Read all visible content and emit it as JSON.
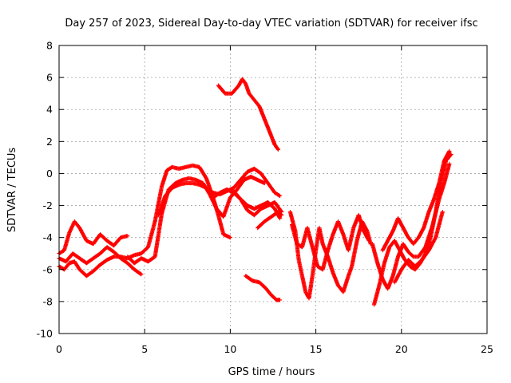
{
  "chart_data": {
    "type": "scatter",
    "title": "Day 257 of 2023, Sidereal Day-to-day VTEC variation (SDTVAR) for receiver ifsc",
    "xlabel": "GPS time / hours",
    "ylabel": "SDTVAR / TECUs",
    "xlim": [
      0,
      25
    ],
    "ylim": [
      -10,
      8
    ],
    "xticks": [
      0,
      5,
      10,
      15,
      20,
      25
    ],
    "yticks": [
      -10,
      -8,
      -6,
      -4,
      -2,
      0,
      2,
      4,
      6,
      8
    ],
    "grid": true,
    "marker": "+",
    "color": "#ff0000",
    "series": [
      {
        "x": [
          0.0,
          0.3,
          0.6,
          0.9,
          1.2,
          1.6,
          2.0,
          2.4,
          2.8,
          3.2,
          3.6,
          4.0
        ],
        "y": [
          -5.0,
          -4.8,
          -3.7,
          -3.0,
          -3.4,
          -4.2,
          -4.4,
          -3.8,
          -4.2,
          -4.5,
          -4.0,
          -3.9
        ]
      },
      {
        "x": [
          0.0,
          0.4,
          0.8,
          1.2,
          1.6,
          2.0,
          2.4,
          2.8,
          3.2,
          3.6,
          4.0,
          4.4,
          4.8
        ],
        "y": [
          -5.3,
          -5.5,
          -5.0,
          -5.3,
          -5.6,
          -5.3,
          -5.0,
          -4.6,
          -4.9,
          -5.3,
          -5.6,
          -6.0,
          -6.3
        ]
      },
      {
        "x": [
          0.0,
          0.3,
          0.6,
          0.9,
          1.2,
          1.6,
          2.0,
          2.4,
          2.8,
          3.2,
          3.6,
          4.0,
          4.4,
          4.8,
          5.2,
          5.6,
          6.0,
          6.3,
          6.6,
          7.0,
          7.4,
          7.8,
          8.2,
          8.6,
          9.0,
          9.3,
          9.6,
          10.0
        ],
        "y": [
          -5.8,
          -6.0,
          -5.6,
          -5.5,
          -6.0,
          -6.4,
          -6.1,
          -5.7,
          -5.4,
          -5.2,
          -5.2,
          -5.3,
          -5.1,
          -5.0,
          -4.6,
          -3.0,
          -0.8,
          0.2,
          0.4,
          0.3,
          0.4,
          0.5,
          0.4,
          -0.3,
          -1.5,
          -2.6,
          -3.8,
          -4.0
        ]
      },
      {
        "x": [
          4.0,
          4.4,
          4.8,
          5.2,
          5.6,
          6.0,
          6.4,
          6.8,
          7.2,
          7.6,
          8.0,
          8.4,
          8.8,
          9.2,
          9.6,
          10.0,
          10.4,
          10.8,
          11.2,
          11.6,
          12.0
        ],
        "y": [
          -5.2,
          -5.6,
          -5.3,
          -5.5,
          -5.2,
          -2.5,
          -1.0,
          -0.6,
          -0.4,
          -0.3,
          -0.4,
          -0.6,
          -1.3,
          -2.2,
          -2.7,
          -1.5,
          -1.0,
          -0.4,
          -0.2,
          -0.4,
          -0.6
        ]
      },
      {
        "x": [
          5.8,
          6.2,
          6.6,
          7.0,
          7.4,
          7.8,
          8.2,
          8.6,
          9.0,
          9.4,
          9.8,
          10.2,
          10.6,
          11.0,
          11.4,
          11.8,
          12.2,
          12.6,
          12.9
        ],
        "y": [
          -2.6,
          -1.4,
          -0.9,
          -0.7,
          -0.6,
          -0.6,
          -0.7,
          -0.9,
          -1.2,
          -1.3,
          -1.1,
          -0.9,
          -0.4,
          0.1,
          0.3,
          0.0,
          -0.6,
          -1.2,
          -1.4
        ]
      },
      {
        "x": [
          9.0,
          9.4,
          9.8,
          10.2,
          10.6,
          11.0,
          11.4,
          11.8,
          12.2,
          12.6,
          12.9
        ],
        "y": [
          -1.5,
          -1.2,
          -1.0,
          -1.2,
          -1.6,
          -2.0,
          -2.2,
          -2.0,
          -1.8,
          -2.2,
          -2.8
        ]
      },
      {
        "x": [
          10.2,
          10.6,
          11.0,
          11.4,
          11.8,
          12.2,
          12.6,
          13.0
        ],
        "y": [
          -1.1,
          -1.6,
          -2.3,
          -2.6,
          -2.2,
          -2.0,
          -1.8,
          -2.4
        ]
      },
      {
        "x": [
          11.6,
          12.0,
          12.4,
          12.8,
          13.0
        ],
        "y": [
          -3.4,
          -3.0,
          -2.7,
          -2.4,
          -2.6
        ]
      },
      {
        "x": [
          9.3,
          9.7,
          10.1,
          10.5,
          10.7,
          10.9,
          11.1,
          11.4,
          11.7,
          12.0,
          12.3,
          12.6,
          12.8
        ],
        "y": [
          5.5,
          5.0,
          5.0,
          5.5,
          5.9,
          5.6,
          5.0,
          4.6,
          4.2,
          3.4,
          2.6,
          1.8,
          1.5
        ]
      },
      {
        "x": [
          10.9,
          11.3,
          11.7,
          12.1,
          12.4,
          12.7,
          12.9
        ],
        "y": [
          -6.4,
          -6.7,
          -6.8,
          -7.2,
          -7.6,
          -7.9,
          -7.9
        ]
      },
      {
        "x": [
          13.5,
          13.8,
          14.0,
          14.2,
          14.4,
          14.6,
          14.8,
          15.0,
          15.2,
          15.4,
          15.7,
          16.0,
          16.3,
          16.6,
          16.9,
          17.1,
          17.4,
          17.7,
          18.0,
          18.2
        ],
        "y": [
          -2.4,
          -3.6,
          -5.4,
          -6.4,
          -7.4,
          -7.8,
          -6.4,
          -4.8,
          -3.4,
          -4.4,
          -5.2,
          -6.2,
          -7.0,
          -7.4,
          -6.4,
          -5.8,
          -4.2,
          -3.0,
          -3.6,
          -4.4
        ]
      },
      {
        "x": [
          13.6,
          13.9,
          14.2,
          14.5,
          14.8,
          15.1,
          15.4,
          15.7,
          16.0,
          16.3,
          16.6,
          16.9,
          17.2,
          17.5,
          17.8,
          18.1
        ],
        "y": [
          -3.2,
          -4.4,
          -4.6,
          -3.4,
          -4.6,
          -5.8,
          -6.0,
          -4.8,
          -3.8,
          -3.0,
          -3.8,
          -4.8,
          -3.4,
          -2.6,
          -3.6,
          -4.2
        ]
      },
      {
        "x": [
          18.3,
          18.6,
          18.9,
          19.2,
          19.5,
          19.8,
          20.1,
          20.4,
          20.7,
          21.0,
          21.4,
          21.8,
          22.2,
          22.5,
          22.8
        ],
        "y": [
          -4.4,
          -5.6,
          -6.6,
          -7.2,
          -6.4,
          -5.2,
          -4.4,
          -4.9,
          -5.2,
          -5.2,
          -4.6,
          -3.3,
          -1.6,
          -0.6,
          0.6
        ]
      },
      {
        "x": [
          18.4,
          18.7,
          19.0,
          19.3,
          19.6,
          19.9,
          20.2,
          20.5,
          20.8,
          21.1,
          21.4,
          21.7,
          22.0,
          22.3,
          22.6,
          22.9
        ],
        "y": [
          -8.2,
          -7.0,
          -5.6,
          -4.6,
          -4.2,
          -4.8,
          -5.4,
          -5.8,
          -6.0,
          -5.6,
          -5.0,
          -4.0,
          -2.4,
          -0.6,
          0.8,
          1.2
        ]
      },
      {
        "x": [
          18.9,
          19.2,
          19.5,
          19.8,
          20.1,
          20.4,
          20.7,
          21.0,
          21.3,
          21.6,
          21.9,
          22.2,
          22.5,
          22.8
        ],
        "y": [
          -4.8,
          -4.2,
          -3.6,
          -2.8,
          -3.4,
          -4.0,
          -4.4,
          -4.0,
          -3.4,
          -2.4,
          -1.6,
          -0.6,
          0.8,
          1.4
        ]
      },
      {
        "x": [
          19.6,
          20.0,
          20.4,
          20.8,
          21.2,
          21.6,
          22.0,
          22.4
        ],
        "y": [
          -6.8,
          -6.0,
          -5.4,
          -5.8,
          -5.4,
          -4.8,
          -4.0,
          -2.4
        ]
      }
    ]
  }
}
